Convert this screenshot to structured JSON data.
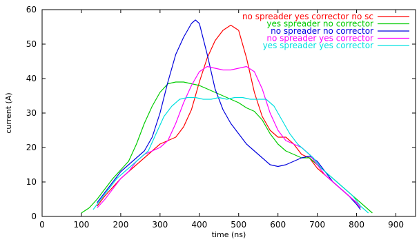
{
  "chart_data": {
    "type": "line",
    "title": "",
    "xlabel": "time (ns)",
    "ylabel": "current (A)",
    "xlim": [
      0,
      950
    ],
    "ylim": [
      0,
      60
    ],
    "xticks": [
      0,
      100,
      200,
      300,
      400,
      500,
      600,
      700,
      800,
      900
    ],
    "yticks": [
      0,
      10,
      20,
      30,
      40,
      50,
      60
    ],
    "grid": false,
    "legend_position": "top-right",
    "series": [
      {
        "name": "no  spreader yes corrector no sc",
        "color": "#ff0000",
        "points": [
          [
            140,
            3
          ],
          [
            160,
            6
          ],
          [
            180,
            8.5
          ],
          [
            200,
            11
          ],
          [
            220,
            13
          ],
          [
            240,
            15
          ],
          [
            260,
            17
          ],
          [
            280,
            19
          ],
          [
            300,
            21
          ],
          [
            320,
            22
          ],
          [
            340,
            23
          ],
          [
            360,
            26
          ],
          [
            380,
            31
          ],
          [
            400,
            39
          ],
          [
            420,
            46
          ],
          [
            440,
            51
          ],
          [
            460,
            54
          ],
          [
            480,
            55.5
          ],
          [
            500,
            54
          ],
          [
            520,
            46
          ],
          [
            540,
            36
          ],
          [
            560,
            29
          ],
          [
            580,
            25
          ],
          [
            600,
            23
          ],
          [
            620,
            23
          ],
          [
            640,
            21
          ],
          [
            660,
            18
          ],
          [
            680,
            17
          ],
          [
            700,
            14
          ],
          [
            720,
            12
          ],
          [
            740,
            10
          ],
          [
            760,
            8
          ],
          [
            780,
            6
          ],
          [
            800,
            4
          ],
          [
            810,
            2.5
          ]
        ]
      },
      {
        "name": "yes spreader no  corrector",
        "color": "#00cc00",
        "points": [
          [
            100,
            1
          ],
          [
            120,
            2.5
          ],
          [
            140,
            5
          ],
          [
            160,
            8
          ],
          [
            180,
            11
          ],
          [
            200,
            13.5
          ],
          [
            220,
            16
          ],
          [
            240,
            21
          ],
          [
            260,
            27
          ],
          [
            280,
            32
          ],
          [
            300,
            36
          ],
          [
            320,
            38.5
          ],
          [
            340,
            39
          ],
          [
            360,
            39
          ],
          [
            380,
            38.5
          ],
          [
            400,
            38
          ],
          [
            420,
            37
          ],
          [
            440,
            36
          ],
          [
            460,
            35
          ],
          [
            480,
            34
          ],
          [
            500,
            33
          ],
          [
            520,
            31.5
          ],
          [
            540,
            30.5
          ],
          [
            560,
            28
          ],
          [
            580,
            24
          ],
          [
            600,
            21
          ],
          [
            620,
            19
          ],
          [
            640,
            18
          ],
          [
            660,
            17
          ],
          [
            680,
            17
          ],
          [
            700,
            15
          ],
          [
            720,
            13
          ],
          [
            740,
            11
          ],
          [
            760,
            9
          ],
          [
            780,
            7
          ],
          [
            800,
            5
          ],
          [
            820,
            3
          ],
          [
            840,
            1
          ]
        ]
      },
      {
        "name": "no  spreader no  corrector",
        "color": "#0000dd",
        "points": [
          [
            140,
            4
          ],
          [
            160,
            7
          ],
          [
            180,
            10
          ],
          [
            200,
            13
          ],
          [
            220,
            15
          ],
          [
            240,
            17
          ],
          [
            260,
            19
          ],
          [
            280,
            23
          ],
          [
            300,
            30
          ],
          [
            320,
            39
          ],
          [
            340,
            47
          ],
          [
            360,
            52
          ],
          [
            380,
            56
          ],
          [
            390,
            57
          ],
          [
            400,
            56
          ],
          [
            420,
            47
          ],
          [
            440,
            37
          ],
          [
            460,
            31
          ],
          [
            480,
            27
          ],
          [
            500,
            24
          ],
          [
            520,
            21
          ],
          [
            540,
            19
          ],
          [
            560,
            17
          ],
          [
            580,
            15
          ],
          [
            600,
            14.5
          ],
          [
            620,
            15
          ],
          [
            640,
            16
          ],
          [
            660,
            17
          ],
          [
            680,
            17.5
          ],
          [
            700,
            16
          ],
          [
            720,
            13
          ],
          [
            740,
            10
          ],
          [
            760,
            8
          ],
          [
            780,
            6
          ],
          [
            800,
            3.5
          ],
          [
            810,
            2
          ]
        ]
      },
      {
        "name": "no  spreader yes corrector",
        "color": "#ff00ff",
        "points": [
          [
            140,
            2.5
          ],
          [
            160,
            5
          ],
          [
            180,
            8
          ],
          [
            200,
            11
          ],
          [
            220,
            13
          ],
          [
            240,
            16
          ],
          [
            260,
            18
          ],
          [
            280,
            19
          ],
          [
            300,
            20
          ],
          [
            320,
            22
          ],
          [
            340,
            27
          ],
          [
            360,
            33
          ],
          [
            380,
            38
          ],
          [
            400,
            42
          ],
          [
            420,
            43.5
          ],
          [
            440,
            43
          ],
          [
            460,
            42.5
          ],
          [
            480,
            42.5
          ],
          [
            500,
            43
          ],
          [
            520,
            43.5
          ],
          [
            540,
            42
          ],
          [
            560,
            37
          ],
          [
            580,
            30
          ],
          [
            600,
            25
          ],
          [
            620,
            22
          ],
          [
            640,
            21
          ],
          [
            660,
            20
          ],
          [
            680,
            18
          ],
          [
            700,
            15
          ],
          [
            720,
            12
          ],
          [
            740,
            10
          ],
          [
            760,
            8
          ],
          [
            780,
            6
          ],
          [
            800,
            4
          ],
          [
            810,
            2.5
          ]
        ]
      },
      {
        "name": "yes spreader yes corrector",
        "color": "#00e0e0",
        "points": [
          [
            130,
            2
          ],
          [
            150,
            5
          ],
          [
            170,
            8
          ],
          [
            190,
            11
          ],
          [
            210,
            13
          ],
          [
            230,
            15
          ],
          [
            250,
            17
          ],
          [
            270,
            19
          ],
          [
            290,
            24
          ],
          [
            310,
            29
          ],
          [
            330,
            32
          ],
          [
            350,
            34
          ],
          [
            370,
            34.5
          ],
          [
            390,
            34.5
          ],
          [
            410,
            34
          ],
          [
            430,
            34
          ],
          [
            450,
            34.5
          ],
          [
            470,
            34
          ],
          [
            490,
            34.5
          ],
          [
            510,
            34.5
          ],
          [
            530,
            34
          ],
          [
            550,
            34
          ],
          [
            570,
            34
          ],
          [
            590,
            32
          ],
          [
            610,
            28
          ],
          [
            630,
            24
          ],
          [
            650,
            21
          ],
          [
            670,
            19
          ],
          [
            690,
            17
          ],
          [
            710,
            14
          ],
          [
            730,
            12
          ],
          [
            750,
            10
          ],
          [
            770,
            8
          ],
          [
            790,
            6
          ],
          [
            810,
            3
          ],
          [
            830,
            1
          ]
        ]
      }
    ]
  }
}
